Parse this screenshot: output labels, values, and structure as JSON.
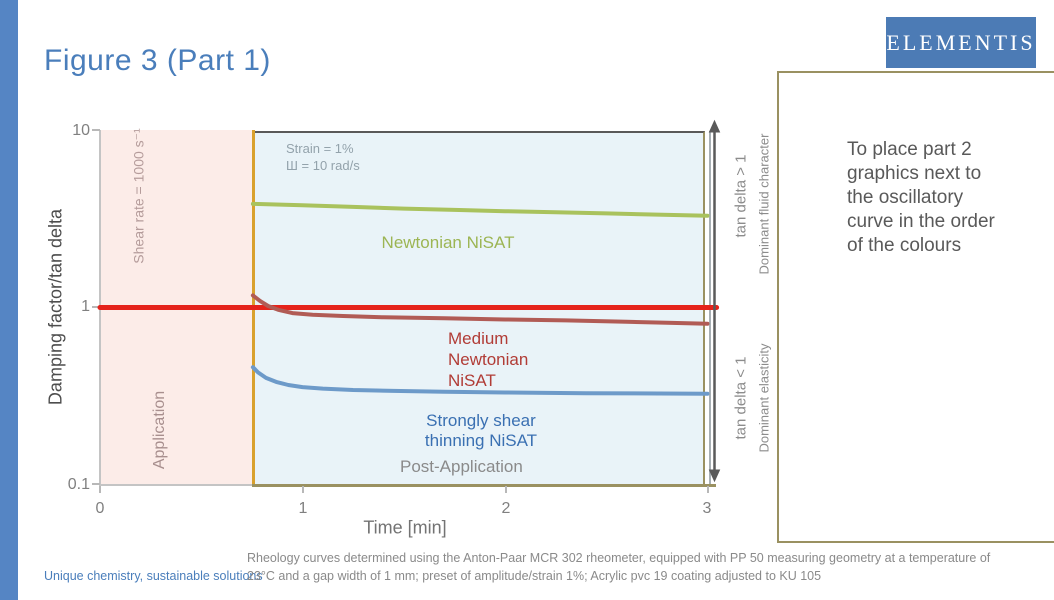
{
  "slide": {
    "title": "Figure 3 (Part 1)",
    "logo_text": "ELEMENTIS",
    "footer_tagline": "Unique chemistry, sustainable solutions",
    "caption": "Rheology curves determined using the Anton-Paar MCR 302 rheometer, equipped with PP 50 measuring geometry at a temperature of\n23°C and a gap width of 1 mm; preset of amplitude/strain 1%; Acrylic pvc 19 coating adjusted to KU 105",
    "colors": {
      "accent_blue": "#4A7EBB",
      "left_bar_blue": "#5585C4",
      "logo_blue": "#4C7BB5",
      "tan_border": "#9A9161",
      "orange_boundary": "#D9A12D",
      "application_fill": "#FCECE8",
      "oscillation_fill": "#E9F3F8",
      "reference_red": "#E5231B",
      "newtonian_green": "#A9C25D",
      "medium_dark_red": "#B15B55",
      "shear_thinning_blue": "#6D9AC9"
    }
  },
  "right_panel": {
    "note": "To place part 2\ngraphics next to\nthe oscillatory\ncurve in the order\nof the colours"
  },
  "chart_data": {
    "type": "line",
    "x_axis": {
      "label": "Time [min]",
      "range": [
        0,
        3
      ],
      "tick_labels": [
        "0",
        "1",
        "2",
        "3"
      ]
    },
    "y_axis": {
      "label": "Damping factor/tan delta",
      "scale": "log",
      "range": [
        0.1,
        10
      ],
      "tick_labels": [
        "10",
        "1",
        "0.1"
      ]
    },
    "regions": [
      {
        "name": "Application",
        "x_start": 0,
        "x_end": 0.75,
        "annotation": "Shear rate = 1000 s⁻¹"
      },
      {
        "name": "Post-Application",
        "x_start": 0.75,
        "x_end": 3.0,
        "annotation": "Strain = 1%\nШ = 10 rad/s"
      }
    ],
    "series": [
      {
        "name": "Newtonian NiSAT",
        "label": "Newtonian NiSAT",
        "color": "#A9C25D",
        "points": [
          [
            0.755,
            3.85
          ],
          [
            1.0,
            3.78
          ],
          [
            1.25,
            3.7
          ],
          [
            1.5,
            3.62
          ],
          [
            1.75,
            3.56
          ],
          [
            2.0,
            3.5
          ],
          [
            2.25,
            3.45
          ],
          [
            2.5,
            3.4
          ],
          [
            2.75,
            3.35
          ],
          [
            3.0,
            3.3
          ]
        ]
      },
      {
        "name": "tan delta = 1 reference",
        "label": "",
        "color": "#E5231B",
        "points": [
          [
            0,
            1.0
          ],
          [
            3.045,
            1.0
          ]
        ]
      },
      {
        "name": "Medium Newtonian NiSAT",
        "label": "Medium\nNewtonian\nNiSAT",
        "color": "#B15B55",
        "points": [
          [
            0.755,
            1.17
          ],
          [
            0.79,
            1.09
          ],
          [
            0.83,
            1.02
          ],
          [
            0.88,
            0.97
          ],
          [
            0.95,
            0.93
          ],
          [
            1.05,
            0.91
          ],
          [
            1.2,
            0.895
          ],
          [
            1.4,
            0.88
          ],
          [
            1.7,
            0.87
          ],
          [
            2.0,
            0.855
          ],
          [
            2.3,
            0.845
          ],
          [
            2.6,
            0.83
          ],
          [
            2.8,
            0.82
          ],
          [
            3.0,
            0.81
          ]
        ]
      },
      {
        "name": "Strongly shear thinning NiSAT",
        "label": "Strongly shear\nthinning NiSAT",
        "color": "#6D9AC9",
        "points": [
          [
            0.755,
            0.46
          ],
          [
            0.78,
            0.43
          ],
          [
            0.82,
            0.4
          ],
          [
            0.87,
            0.38
          ],
          [
            0.93,
            0.365
          ],
          [
            1.0,
            0.355
          ],
          [
            1.1,
            0.348
          ],
          [
            1.25,
            0.342
          ],
          [
            1.45,
            0.338
          ],
          [
            1.7,
            0.334
          ],
          [
            2.0,
            0.331
          ],
          [
            2.4,
            0.328
          ],
          [
            3.0,
            0.326
          ]
        ]
      }
    ],
    "right_labels": {
      "upper_primary": "tan delta > 1",
      "upper_secondary": "Dominant fluid character",
      "lower_primary": "tan delta < 1",
      "lower_secondary": "Dominant elasticity"
    },
    "legend_position": "inline-labels",
    "grid": false
  }
}
